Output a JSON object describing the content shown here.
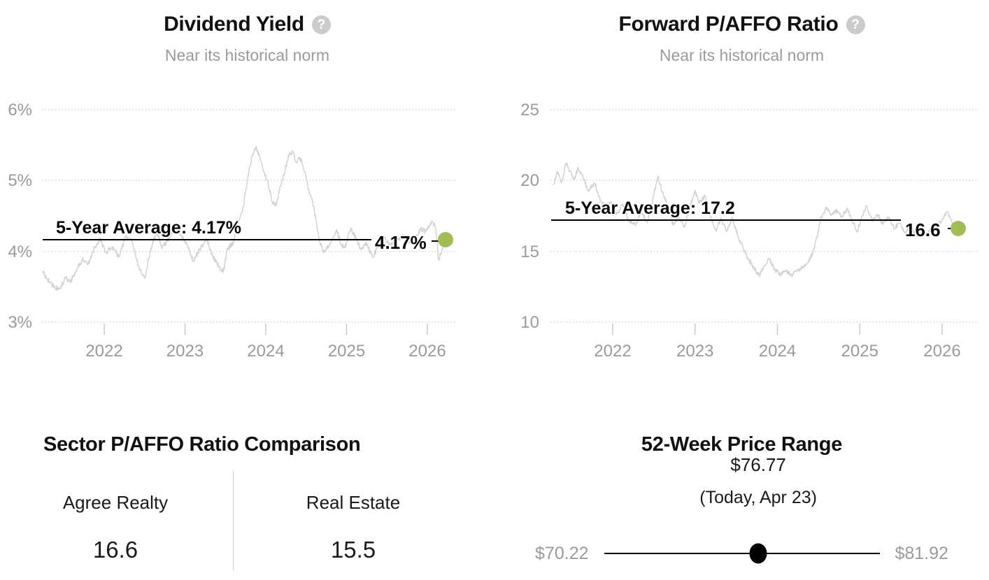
{
  "icons": {
    "help": "?"
  },
  "colors": {
    "accent_dot": "#a2bd56",
    "series_line": "#d2d2d2",
    "average_line": "#000000",
    "muted_text": "#9a9a9a"
  },
  "chart_data": [
    {
      "id": "dividend_yield",
      "type": "line",
      "title": "Dividend Yield",
      "subtitle": "Near its historical norm",
      "unit": "%",
      "average": 4.17,
      "current": 4.17,
      "average_label": "5-Year Average: 4.17%",
      "current_label": "4.17%",
      "ylim": [
        3,
        6
      ],
      "xlim": [
        2021.24,
        2026.22
      ],
      "grid": "dotted-horizontal",
      "legend": "none",
      "y_tick_values": [
        6,
        5,
        4,
        3
      ],
      "y_tick_labels": [
        "6%",
        "5%",
        "4%",
        "3%"
      ],
      "x_tick_values": [
        2022,
        2023,
        2024,
        2025,
        2026
      ],
      "x_tick_labels": [
        "2022",
        "2023",
        "2024",
        "2025",
        "2026"
      ],
      "series": [
        {
          "name": "Dividend Yield",
          "points": [
            [
              2021.24,
              3.72
            ],
            [
              2021.3,
              3.6
            ],
            [
              2021.38,
              3.5
            ],
            [
              2021.45,
              3.47
            ],
            [
              2021.52,
              3.62
            ],
            [
              2021.58,
              3.56
            ],
            [
              2021.67,
              3.76
            ],
            [
              2021.73,
              3.88
            ],
            [
              2021.8,
              3.82
            ],
            [
              2021.88,
              4.05
            ],
            [
              2021.95,
              4.18
            ],
            [
              2022.02,
              3.98
            ],
            [
              2022.1,
              4.06
            ],
            [
              2022.18,
              3.92
            ],
            [
              2022.27,
              4.22
            ],
            [
              2022.35,
              4.12
            ],
            [
              2022.42,
              3.8
            ],
            [
              2022.5,
              3.62
            ],
            [
              2022.58,
              4.05
            ],
            [
              2022.65,
              4.28
            ],
            [
              2022.72,
              4.05
            ],
            [
              2022.8,
              4.18
            ],
            [
              2022.88,
              4.4
            ],
            [
              2022.95,
              4.22
            ],
            [
              2023.02,
              4.12
            ],
            [
              2023.1,
              3.86
            ],
            [
              2023.18,
              4.02
            ],
            [
              2023.27,
              4.18
            ],
            [
              2023.33,
              3.95
            ],
            [
              2023.4,
              3.82
            ],
            [
              2023.47,
              3.7
            ],
            [
              2023.53,
              4.05
            ],
            [
              2023.6,
              4.12
            ],
            [
              2023.65,
              4.38
            ],
            [
              2023.72,
              4.62
            ],
            [
              2023.78,
              5.05
            ],
            [
              2023.83,
              5.35
            ],
            [
              2023.88,
              5.48
            ],
            [
              2023.93,
              5.3
            ],
            [
              2023.98,
              5.12
            ],
            [
              2024.03,
              4.95
            ],
            [
              2024.08,
              4.7
            ],
            [
              2024.13,
              4.65
            ],
            [
              2024.18,
              4.92
            ],
            [
              2024.23,
              5.1
            ],
            [
              2024.28,
              5.35
            ],
            [
              2024.33,
              5.42
            ],
            [
              2024.38,
              5.25
            ],
            [
              2024.43,
              5.32
            ],
            [
              2024.48,
              5.12
            ],
            [
              2024.53,
              4.88
            ],
            [
              2024.58,
              4.7
            ],
            [
              2024.62,
              4.45
            ],
            [
              2024.67,
              4.12
            ],
            [
              2024.72,
              3.98
            ],
            [
              2024.78,
              4.08
            ],
            [
              2024.83,
              4.18
            ],
            [
              2024.88,
              4.3
            ],
            [
              2024.93,
              4.1
            ],
            [
              2024.98,
              4.05
            ],
            [
              2025.05,
              4.32
            ],
            [
              2025.12,
              4.18
            ],
            [
              2025.18,
              4.02
            ],
            [
              2025.25,
              4.12
            ],
            [
              2025.32,
              3.92
            ],
            [
              2025.4,
              4.08
            ],
            [
              2025.47,
              4.18
            ],
            [
              2025.55,
              4.1
            ],
            [
              2025.62,
              4.15
            ],
            [
              2025.7,
              4.22
            ],
            [
              2025.78,
              4.12
            ],
            [
              2025.85,
              4.18
            ],
            [
              2025.92,
              4.32
            ],
            [
              2025.98,
              4.28
            ],
            [
              2026.05,
              4.42
            ],
            [
              2026.1,
              4.35
            ],
            [
              2026.14,
              3.88
            ],
            [
              2026.18,
              4.02
            ],
            [
              2026.22,
              4.17
            ]
          ]
        }
      ]
    },
    {
      "id": "paffo",
      "type": "line",
      "title": "Forward P/AFFO Ratio",
      "subtitle": "Near its historical norm",
      "unit": "",
      "average": 17.2,
      "current": 16.6,
      "average_label": "5-Year Average: 17.2",
      "current_label": "16.6",
      "ylim": [
        10,
        25
      ],
      "xlim": [
        2021.28,
        2026.2
      ],
      "grid": "dotted-horizontal",
      "legend": "none",
      "y_tick_values": [
        25,
        20,
        15,
        10
      ],
      "y_tick_labels": [
        "25",
        "20",
        "15",
        "10"
      ],
      "x_tick_values": [
        2022,
        2023,
        2024,
        2025,
        2026
      ],
      "x_tick_labels": [
        "2022",
        "2023",
        "2024",
        "2025",
        "2026"
      ],
      "series": [
        {
          "name": "Forward P/AFFO Ratio",
          "points": [
            [
              2021.28,
              19.7
            ],
            [
              2021.33,
              20.6
            ],
            [
              2021.38,
              19.9
            ],
            [
              2021.43,
              21.2
            ],
            [
              2021.48,
              20.7
            ],
            [
              2021.53,
              20.0
            ],
            [
              2021.58,
              20.9
            ],
            [
              2021.63,
              20.4
            ],
            [
              2021.7,
              19.3
            ],
            [
              2021.78,
              19.8
            ],
            [
              2021.85,
              18.6
            ],
            [
              2021.92,
              18.1
            ],
            [
              2021.98,
              18.5
            ],
            [
              2022.05,
              17.6
            ],
            [
              2022.12,
              18.3
            ],
            [
              2022.2,
              17.1
            ],
            [
              2022.28,
              16.9
            ],
            [
              2022.35,
              17.8
            ],
            [
              2022.42,
              17.0
            ],
            [
              2022.5,
              19.0
            ],
            [
              2022.55,
              20.3
            ],
            [
              2022.6,
              19.2
            ],
            [
              2022.67,
              18.2
            ],
            [
              2022.73,
              16.9
            ],
            [
              2022.8,
              17.4
            ],
            [
              2022.87,
              16.7
            ],
            [
              2022.93,
              17.9
            ],
            [
              2023.0,
              19.3
            ],
            [
              2023.05,
              18.4
            ],
            [
              2023.12,
              18.9
            ],
            [
              2023.18,
              17.6
            ],
            [
              2023.25,
              16.5
            ],
            [
              2023.32,
              17.3
            ],
            [
              2023.38,
              16.4
            ],
            [
              2023.45,
              17.4
            ],
            [
              2023.52,
              16.1
            ],
            [
              2023.58,
              15.3
            ],
            [
              2023.65,
              14.4
            ],
            [
              2023.72,
              13.8
            ],
            [
              2023.78,
              13.3
            ],
            [
              2023.85,
              14.0
            ],
            [
              2023.9,
              14.5
            ],
            [
              2023.97,
              13.7
            ],
            [
              2024.03,
              13.4
            ],
            [
              2024.1,
              13.6
            ],
            [
              2024.17,
              13.3
            ],
            [
              2024.23,
              13.6
            ],
            [
              2024.3,
              13.9
            ],
            [
              2024.37,
              14.2
            ],
            [
              2024.43,
              14.9
            ],
            [
              2024.48,
              16.0
            ],
            [
              2024.53,
              17.4
            ],
            [
              2024.6,
              18.1
            ],
            [
              2024.65,
              17.6
            ],
            [
              2024.72,
              17.9
            ],
            [
              2024.78,
              17.5
            ],
            [
              2024.85,
              18.0
            ],
            [
              2024.9,
              17.3
            ],
            [
              2024.97,
              16.4
            ],
            [
              2025.03,
              17.5
            ],
            [
              2025.08,
              18.2
            ],
            [
              2025.15,
              17.2
            ],
            [
              2025.22,
              17.6
            ],
            [
              2025.28,
              16.9
            ],
            [
              2025.35,
              17.4
            ],
            [
              2025.42,
              16.6
            ],
            [
              2025.48,
              17.0
            ],
            [
              2025.55,
              16.3
            ],
            [
              2025.62,
              16.7
            ],
            [
              2025.68,
              16.1
            ],
            [
              2025.75,
              16.5
            ],
            [
              2025.82,
              16.2
            ],
            [
              2025.88,
              16.6
            ],
            [
              2025.95,
              16.9
            ],
            [
              2026.0,
              17.2
            ],
            [
              2026.06,
              17.8
            ],
            [
              2026.1,
              17.3
            ],
            [
              2026.14,
              16.8
            ],
            [
              2026.2,
              16.6
            ]
          ]
        }
      ]
    },
    {
      "id": "sector_comparison",
      "type": "table",
      "title": "Sector P/AFFO Ratio Comparison",
      "categories": [
        "Agree Realty",
        "Real Estate"
      ],
      "values": [
        16.6,
        15.5
      ],
      "values_display": [
        "16.6",
        "15.5"
      ]
    },
    {
      "id": "price_range_52w",
      "type": "range",
      "title": "52-Week Price Range",
      "low": 70.22,
      "high": 81.92,
      "current": 76.77,
      "fraction": 0.56,
      "low_label": "$70.22",
      "high_label": "$81.92",
      "current_price_label": "$76.77",
      "current_date_label": "(Today, Apr 23)"
    }
  ]
}
